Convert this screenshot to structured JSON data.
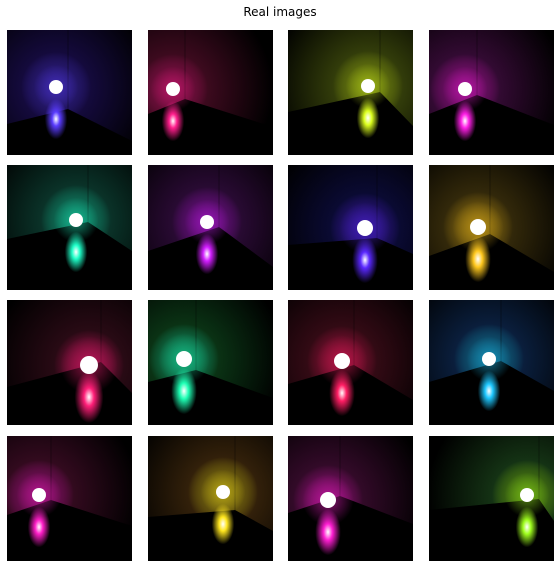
{
  "title": "Real images",
  "images": [
    {
      "light": "#5a3cff",
      "wall": "#140a3c"
    },
    {
      "light": "#ff1e8c",
      "wall": "#3c0a1e"
    },
    {
      "light": "#dcff1e",
      "wall": "#323c0a"
    },
    {
      "light": "#ff1ee6",
      "wall": "#320a32"
    },
    {
      "light": "#1effc8",
      "wall": "#0a3228"
    },
    {
      "light": "#d21eff",
      "wall": "#280a32"
    },
    {
      "light": "#5a28ff",
      "wall": "#0a0a32"
    },
    {
      "light": "#ffc81e",
      "wall": "#32280a"
    },
    {
      "light": "#ff1e78",
      "wall": "#280a14"
    },
    {
      "light": "#1effb4",
      "wall": "#0a3214"
    },
    {
      "light": "#ff1e64",
      "wall": "#320a14"
    },
    {
      "light": "#1ec8ff",
      "wall": "#0a1e3c"
    },
    {
      "light": "#ff1ec8",
      "wall": "#320a1e"
    },
    {
      "light": "#ffe61e",
      "wall": "#32200a"
    },
    {
      "light": "#ff1ed2",
      "wall": "#320a28"
    },
    {
      "light": "#a0ff1e",
      "wall": "#143214"
    }
  ]
}
